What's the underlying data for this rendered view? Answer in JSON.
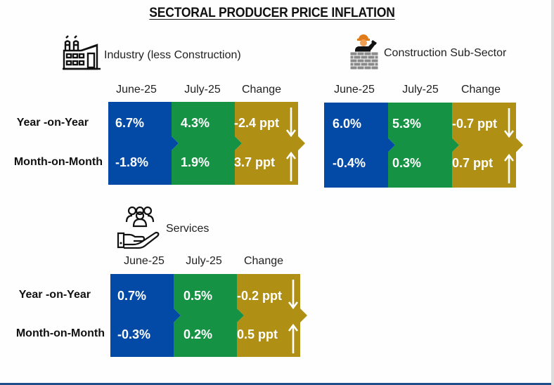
{
  "title": "SECTORAL PRODUCER PRICE INFLATION",
  "colors": {
    "june": "#034aa6",
    "july": "#169244",
    "change": "#b08f15",
    "text_on_fill": "#ffffff",
    "footer_line": "#1f4e8c"
  },
  "columns": [
    "June-25",
    "July-25",
    "Change"
  ],
  "rows": [
    "Year -on-Year",
    "Month-on-Month"
  ],
  "sectors": [
    {
      "id": "industry",
      "label": "Industry (less Construction)",
      "icon": "factory-icon",
      "rows": [
        {
          "label": "Year -on-Year",
          "june": "6.7%",
          "july": "4.3%",
          "change": "-2.4 ppt",
          "direction": "down"
        },
        {
          "label": "Month-on-Month",
          "june": "-1.8%",
          "july": "1.9%",
          "change": "3.7 ppt",
          "direction": "up"
        }
      ]
    },
    {
      "id": "construction",
      "label": "Construction Sub-Sector",
      "icon": "construction-worker-icon",
      "rows": [
        {
          "label": "Year -on-Year",
          "june": "6.0%",
          "july": "5.3%",
          "change": "-0.7 ppt",
          "direction": "down"
        },
        {
          "label": "Month-on-Month",
          "june": "-0.4%",
          "july": "0.3%",
          "change": "0.7 ppt",
          "direction": "up"
        }
      ]
    },
    {
      "id": "services",
      "label": "Services",
      "icon": "service-hand-people-icon",
      "rows": [
        {
          "label": "Year -on-Year",
          "june": "0.7%",
          "july": "0.5%",
          "change": "-0.2 ppt",
          "direction": "down"
        },
        {
          "label": "Month-on-Month",
          "june": "-0.3%",
          "july": "0.2%",
          "change": "0.5 ppt",
          "direction": "up"
        }
      ]
    }
  ]
}
